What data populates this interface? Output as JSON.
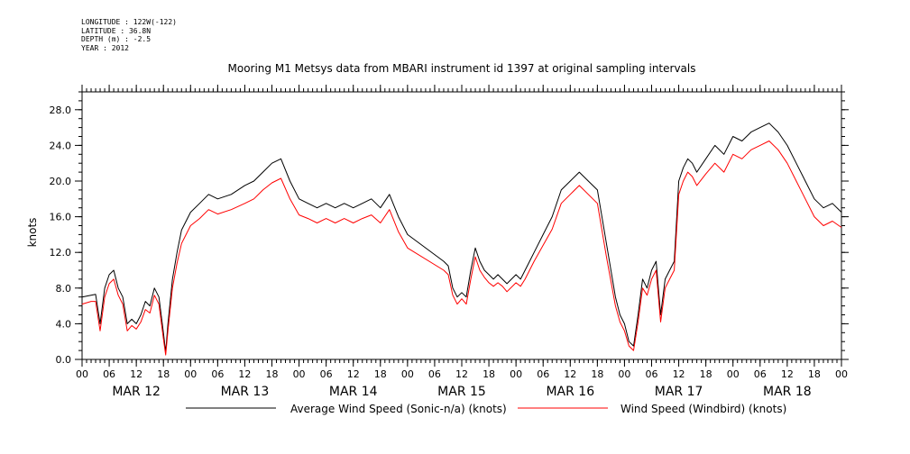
{
  "header": {
    "longitude": "LONGITUDE : 122W(-122)",
    "latitude": "LATITUDE : 36.8N",
    "depth": "DEPTH (m) : -2.5",
    "year": "YEAR : 2012"
  },
  "chart_data": {
    "type": "line",
    "title": "Mooring M1 Metsys data from MBARI instrument id 1397 at original sampling intervals",
    "xlabel": "",
    "ylabel": "knots",
    "ylim": [
      0,
      30
    ],
    "xlim_hours": [
      0,
      168
    ],
    "y_ticks": [
      "0.0",
      "4.0",
      "8.0",
      "12.0",
      "16.0",
      "20.0",
      "24.0",
      "28.0"
    ],
    "hour_ticks": [
      "00",
      "06",
      "12",
      "18",
      "00",
      "06",
      "12",
      "18",
      "00",
      "06",
      "12",
      "18",
      "00",
      "06",
      "12",
      "18",
      "00",
      "06",
      "12",
      "18",
      "00",
      "06",
      "12",
      "18",
      "00",
      "06",
      "12",
      "18",
      "00"
    ],
    "day_labels": [
      "MAR 12",
      "MAR 13",
      "MAR 14",
      "MAR 15",
      "MAR 16",
      "MAR 17",
      "MAR 18"
    ],
    "grid": false,
    "legend_position": "bottom",
    "series": [
      {
        "name": "Average Wind Speed (Sonic-n/a) (knots)",
        "color": "#000000",
        "x": [
          0,
          2,
          3,
          4,
          5,
          6,
          7,
          8,
          9,
          10,
          11,
          12,
          13,
          14,
          15,
          16,
          17,
          18,
          18.5,
          19,
          20,
          21,
          22,
          23,
          24,
          26,
          28,
          30,
          33,
          36,
          38,
          40,
          42,
          44,
          46,
          48,
          50,
          52,
          54,
          56,
          58,
          60,
          62,
          64,
          66,
          68,
          70,
          72,
          80,
          81,
          82,
          83,
          84,
          85,
          86,
          87,
          88,
          89,
          90,
          91,
          92,
          93,
          94,
          96,
          97,
          98,
          99,
          100,
          102,
          104,
          106,
          108,
          110,
          112,
          114,
          115,
          116,
          118,
          119,
          120,
          121,
          122,
          123,
          124,
          125,
          126,
          127,
          128,
          129,
          130,
          131,
          132,
          133,
          134,
          135,
          136,
          138,
          140,
          142,
          144,
          146,
          148,
          150,
          152,
          154,
          156,
          158,
          160,
          162,
          164,
          166,
          168
        ],
        "y": [
          7.0,
          7.2,
          7.3,
          4.0,
          8.0,
          9.5,
          10.0,
          8.0,
          7.0,
          4.0,
          4.5,
          4.0,
          5.0,
          6.5,
          6.0,
          8.0,
          7.0,
          3.0,
          0.8,
          4.0,
          9.0,
          12.0,
          14.5,
          15.5,
          16.5,
          17.5,
          18.5,
          18.0,
          18.5,
          19.5,
          20.0,
          21.0,
          22.0,
          22.5,
          20.0,
          18.0,
          17.5,
          17.0,
          17.5,
          17.0,
          17.5,
          17.0,
          17.5,
          18.0,
          17.0,
          18.5,
          16.0,
          14.0,
          11.0,
          10.5,
          8.0,
          7.0,
          7.5,
          7.0,
          10.0,
          12.5,
          11.0,
          10.0,
          9.5,
          9.0,
          9.5,
          9.0,
          8.5,
          9.5,
          9.0,
          10.0,
          11.0,
          12.0,
          14.0,
          16.0,
          19.0,
          20.0,
          21.0,
          20.0,
          19.0,
          16.0,
          13.0,
          7.0,
          5.0,
          4.0,
          2.0,
          1.5,
          5.0,
          9.0,
          8.0,
          10.0,
          11.0,
          5.0,
          9.0,
          10.0,
          11.0,
          20.0,
          21.5,
          22.5,
          22.0,
          21.0,
          22.5,
          24.0,
          23.0,
          25.0,
          24.5,
          25.5,
          26.0,
          26.5,
          25.5,
          24.0,
          22.0,
          20.0,
          18.0,
          17.0,
          17.5,
          16.5
        ]
      },
      {
        "name": "Wind Speed (Windbird) (knots)",
        "color": "#ff0000",
        "x": [
          0,
          2,
          3,
          4,
          5,
          6,
          7,
          8,
          9,
          10,
          11,
          12,
          13,
          14,
          15,
          16,
          17,
          18,
          18.5,
          19,
          20,
          21,
          22,
          23,
          24,
          26,
          28,
          30,
          33,
          36,
          38,
          40,
          42,
          44,
          46,
          48,
          50,
          52,
          54,
          56,
          58,
          60,
          62,
          64,
          66,
          68,
          70,
          72,
          80,
          81,
          82,
          83,
          84,
          85,
          86,
          87,
          88,
          89,
          90,
          91,
          92,
          93,
          94,
          96,
          97,
          98,
          99,
          100,
          102,
          104,
          106,
          108,
          110,
          112,
          114,
          115,
          116,
          118,
          119,
          120,
          121,
          122,
          123,
          124,
          125,
          126,
          127,
          128,
          129,
          130,
          131,
          132,
          133,
          134,
          135,
          136,
          138,
          140,
          142,
          144,
          146,
          148,
          150,
          152,
          154,
          156,
          158,
          160,
          162,
          164,
          166,
          168
        ],
        "y": [
          6.2,
          6.5,
          6.5,
          3.2,
          7.0,
          8.5,
          9.0,
          7.2,
          6.2,
          3.2,
          3.8,
          3.4,
          4.2,
          5.6,
          5.2,
          7.2,
          6.2,
          2.3,
          0.5,
          3.2,
          8.0,
          10.8,
          13.0,
          14.0,
          15.0,
          15.8,
          16.8,
          16.3,
          16.8,
          17.5,
          18.0,
          19.0,
          19.8,
          20.3,
          18.0,
          16.2,
          15.8,
          15.3,
          15.8,
          15.3,
          15.8,
          15.3,
          15.8,
          16.2,
          15.3,
          16.8,
          14.3,
          12.5,
          10.0,
          9.5,
          7.2,
          6.2,
          6.8,
          6.2,
          9.0,
          11.5,
          10.0,
          9.2,
          8.6,
          8.2,
          8.6,
          8.2,
          7.6,
          8.6,
          8.2,
          9.0,
          10.0,
          11.0,
          12.8,
          14.6,
          17.5,
          18.5,
          19.5,
          18.5,
          17.5,
          14.5,
          11.5,
          6.0,
          4.2,
          3.2,
          1.5,
          1.0,
          4.2,
          8.0,
          7.2,
          9.0,
          10.0,
          4.2,
          8.0,
          9.0,
          10.0,
          18.5,
          20.0,
          21.0,
          20.5,
          19.5,
          20.8,
          22.0,
          21.0,
          23.0,
          22.5,
          23.5,
          24.0,
          24.5,
          23.5,
          22.0,
          20.0,
          18.0,
          16.0,
          15.0,
          15.5,
          14.8
        ]
      }
    ]
  }
}
